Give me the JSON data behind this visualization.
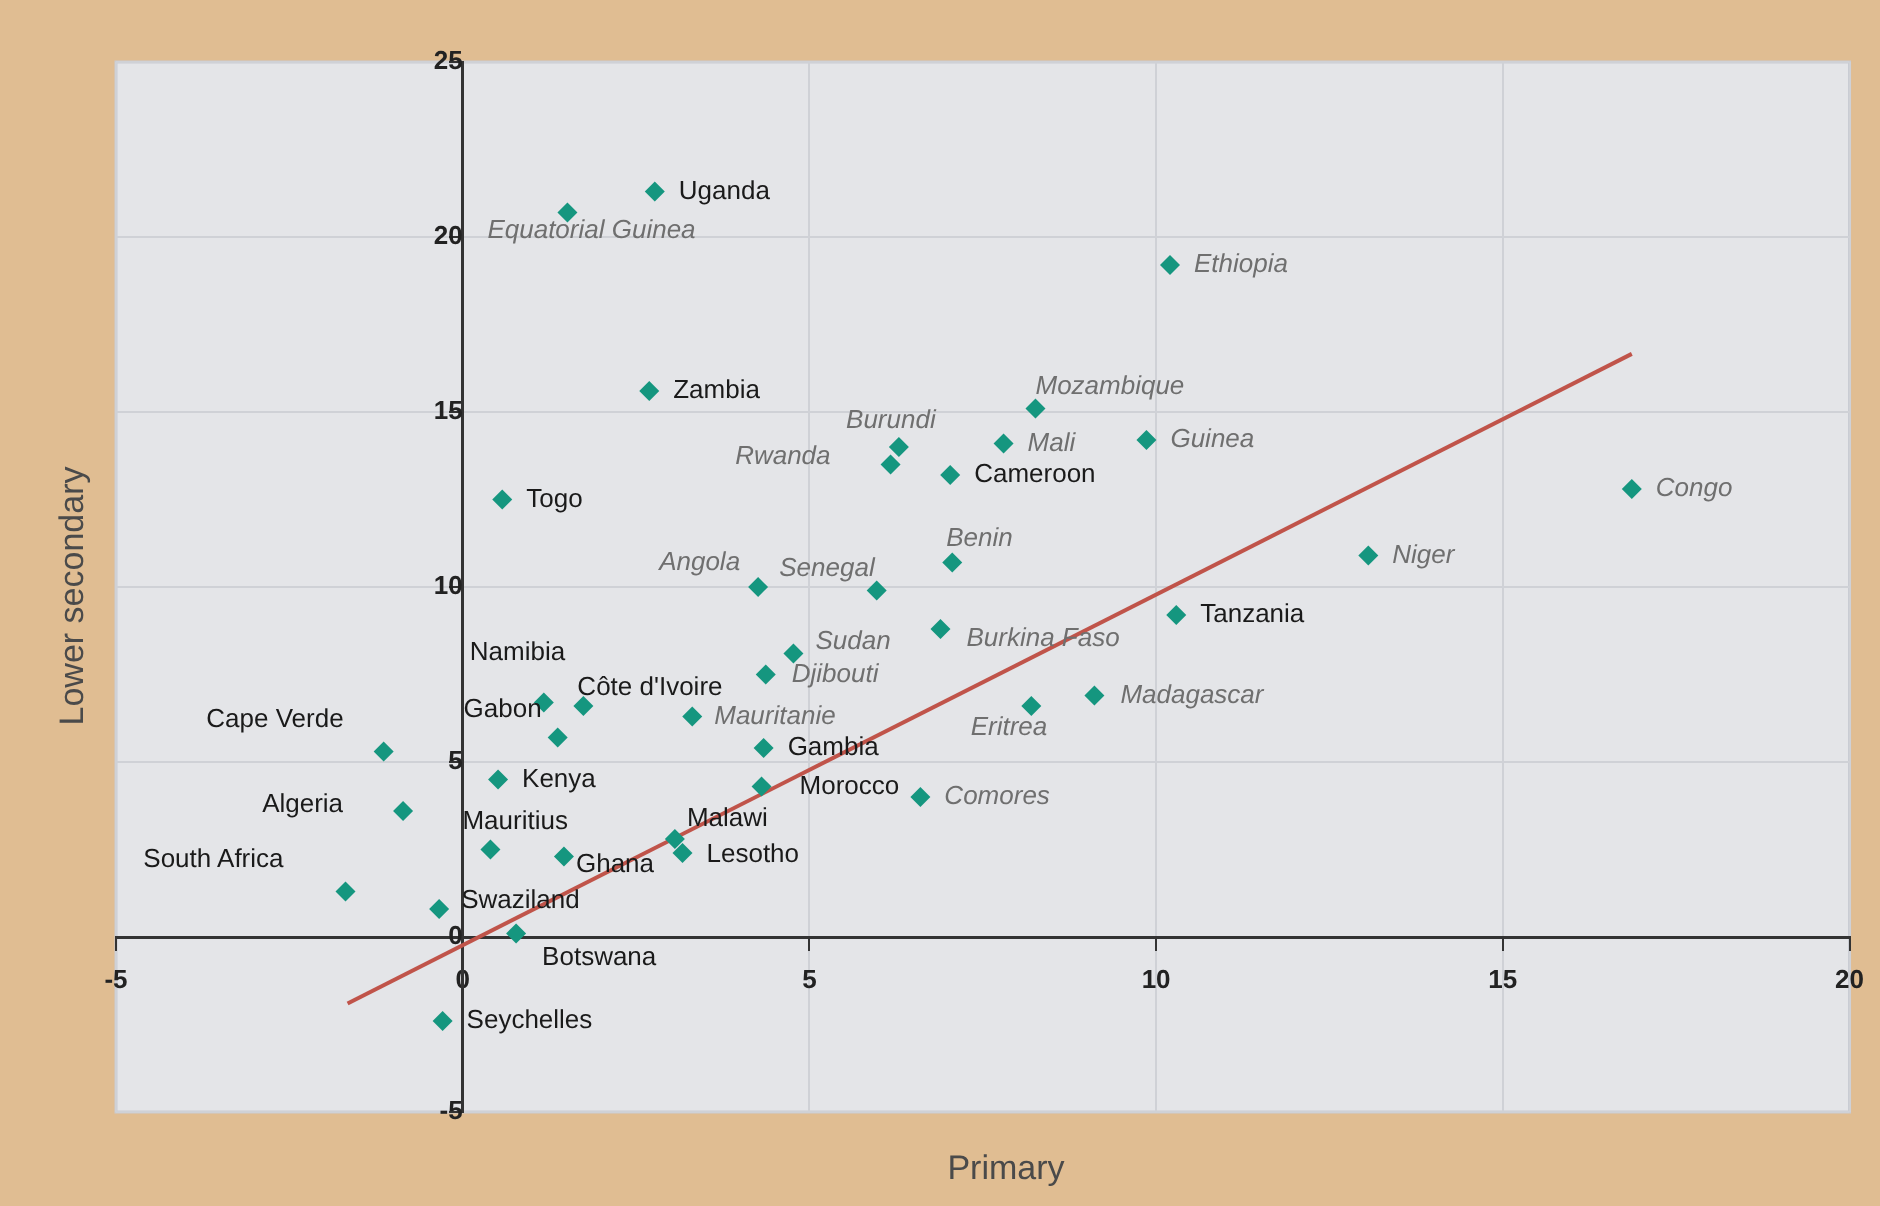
{
  "chart_data": {
    "type": "scatter",
    "xlabel": "Primary",
    "ylabel": "Lower secondary",
    "xlim": [
      -5,
      20
    ],
    "ylim": [
      -5,
      25
    ],
    "xticks": [
      -5,
      0,
      5,
      10,
      15,
      20
    ],
    "yticks": [
      -5,
      0,
      5,
      10,
      15,
      20,
      25
    ],
    "grid": true,
    "legend": false,
    "marker": "diamond",
    "series": [
      {
        "type": "scatter",
        "color": "#15967f",
        "x": [
          2.77,
          1.51,
          10.2,
          2.69,
          8.26,
          6.29,
          6.17,
          7.8,
          9.86,
          7.03,
          0.57,
          16.86,
          13.06,
          7.06,
          4.26,
          5.97,
          10.29,
          6.89,
          4.77,
          4.37,
          1.17,
          1.74,
          3.31,
          8.2,
          9.11,
          1.37,
          -1.14,
          4.34,
          0.51,
          4.31,
          6.6,
          -0.86,
          3.06,
          3.17,
          0.4,
          1.46,
          -1.69,
          -0.34,
          0.77,
          -0.29
        ],
        "values": [
          21.3,
          20.7,
          19.2,
          15.6,
          15.1,
          14.0,
          13.5,
          14.1,
          14.2,
          13.2,
          12.5,
          12.8,
          10.9,
          10.7,
          10.0,
          9.9,
          9.2,
          8.8,
          8.1,
          7.5,
          6.7,
          6.6,
          6.3,
          6.6,
          6.9,
          5.7,
          5.3,
          5.4,
          4.5,
          4.3,
          4.0,
          3.6,
          2.8,
          2.4,
          2.5,
          2.3,
          1.3,
          0.8,
          0.1,
          -2.4
        ]
      },
      {
        "type": "line",
        "color": "#c0544a",
        "x": [
          -1.66,
          16.86
        ],
        "values": [
          -1.9,
          16.66
        ],
        "marker": "none"
      }
    ],
    "annotations": [
      {
        "text": "Uganda",
        "x": 2.77,
        "y": 21.3
      },
      {
        "text": "Equatorial Guinea",
        "x": 1.51,
        "y": 20.7
      },
      {
        "text": "Ethiopia",
        "x": 10.2,
        "y": 19.2
      },
      {
        "text": "Zambia",
        "x": 2.69,
        "y": 15.6
      },
      {
        "text": "Mozambique",
        "x": 8.26,
        "y": 15.1
      },
      {
        "text": "Burundi",
        "x": 6.29,
        "y": 14.0
      },
      {
        "text": "Rwanda",
        "x": 6.17,
        "y": 13.5
      },
      {
        "text": "Mali",
        "x": 7.8,
        "y": 14.1
      },
      {
        "text": "Guinea",
        "x": 9.86,
        "y": 14.2
      },
      {
        "text": "Cameroon",
        "x": 7.03,
        "y": 13.2
      },
      {
        "text": "Togo",
        "x": 0.57,
        "y": 12.5
      },
      {
        "text": "Congo",
        "x": 16.86,
        "y": 12.8
      },
      {
        "text": "Niger",
        "x": 13.06,
        "y": 10.9
      },
      {
        "text": "Benin",
        "x": 7.06,
        "y": 10.7
      },
      {
        "text": "Angola",
        "x": 4.26,
        "y": 10.0
      },
      {
        "text": "Senegal",
        "x": 5.97,
        "y": 9.9
      },
      {
        "text": "Tanzania",
        "x": 10.29,
        "y": 9.2
      },
      {
        "text": "Burkina Faso",
        "x": 6.89,
        "y": 8.8
      },
      {
        "text": "Sudan",
        "x": 4.77,
        "y": 8.1
      },
      {
        "text": "Djibouti",
        "x": 4.37,
        "y": 7.5
      },
      {
        "text": "Namibia",
        "x": 1.17,
        "y": 6.7
      },
      {
        "text": "Côte d'Ivoire",
        "x": 1.74,
        "y": 6.6
      },
      {
        "text": "Mauritanie",
        "x": 3.31,
        "y": 6.3
      },
      {
        "text": "Eritrea",
        "x": 8.2,
        "y": 6.6
      },
      {
        "text": "Madagascar",
        "x": 9.11,
        "y": 6.9
      },
      {
        "text": "Gabon",
        "x": 1.37,
        "y": 5.7
      },
      {
        "text": "Cape Verde",
        "x": -1.14,
        "y": 5.3
      },
      {
        "text": "Gambia",
        "x": 4.34,
        "y": 5.4
      },
      {
        "text": "Kenya",
        "x": 0.51,
        "y": 4.5
      },
      {
        "text": "Morocco",
        "x": 4.31,
        "y": 4.3
      },
      {
        "text": "Comores",
        "x": 6.6,
        "y": 4.0
      },
      {
        "text": "Algeria",
        "x": -0.86,
        "y": 3.6
      },
      {
        "text": "Malawi",
        "x": 3.06,
        "y": 2.8
      },
      {
        "text": "Lesotho",
        "x": 3.17,
        "y": 2.4
      },
      {
        "text": "Mauritius",
        "x": 0.4,
        "y": 2.5
      },
      {
        "text": "Ghana",
        "x": 1.46,
        "y": 2.3
      },
      {
        "text": "South Africa",
        "x": -1.69,
        "y": 1.3
      },
      {
        "text": "Swaziland",
        "x": -0.34,
        "y": 0.8
      },
      {
        "text": "Botswana",
        "x": 0.77,
        "y": 0.1
      },
      {
        "text": "Seychelles",
        "x": -0.29,
        "y": -2.4
      }
    ]
  }
}
